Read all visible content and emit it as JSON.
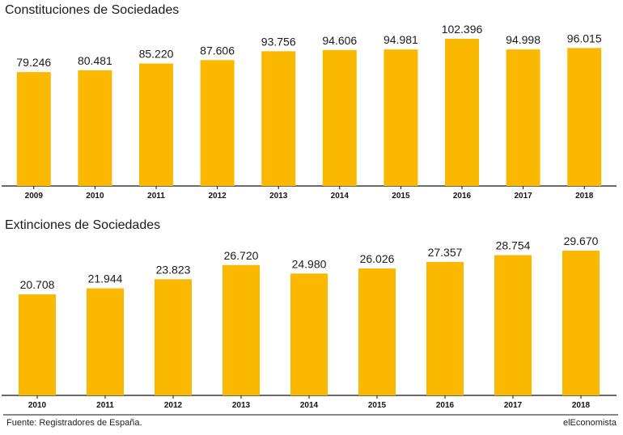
{
  "chart_data": [
    {
      "type": "bar",
      "title": "Constituciones de Sociedades",
      "categories": [
        "2009",
        "2010",
        "2011",
        "2012",
        "2013",
        "2014",
        "2015",
        "2016",
        "2017",
        "2018"
      ],
      "values": [
        79246,
        80481,
        85220,
        87606,
        93756,
        94606,
        94981,
        102396,
        94998,
        96015
      ],
      "value_labels": [
        "79.246",
        "80.481",
        "85.220",
        "87.606",
        "93.756",
        "94.606",
        "94.981",
        "102.396",
        "94.998",
        "96.015"
      ],
      "color": "#FAB900",
      "xlabel": "",
      "ylabel": "",
      "ylim": [
        0,
        102396
      ]
    },
    {
      "type": "bar",
      "title": "Extinciones de Sociedades",
      "categories": [
        "2010",
        "2011",
        "2012",
        "2013",
        "2014",
        "2015",
        "2016",
        "2017",
        "2018"
      ],
      "values": [
        20708,
        21944,
        23823,
        26720,
        24980,
        26026,
        27357,
        28754,
        29670
      ],
      "value_labels": [
        "20.708",
        "21.944",
        "23.823",
        "26.720",
        "24.980",
        "26.026",
        "27.357",
        "28.754",
        "29.670"
      ],
      "color": "#FAB900",
      "xlabel": "",
      "ylabel": "",
      "ylim": [
        0,
        29670
      ]
    }
  ],
  "footer": {
    "source": "Fuente: Registradores de España.",
    "brand": "elEconomista"
  }
}
